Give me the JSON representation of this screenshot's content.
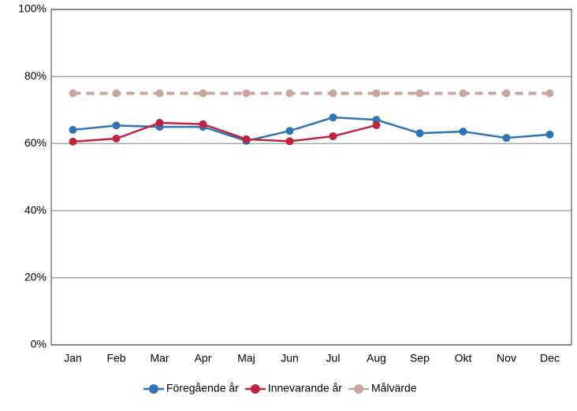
{
  "chart_data": {
    "type": "line",
    "categories": [
      "Jan",
      "Feb",
      "Mar",
      "Apr",
      "Maj",
      "Jun",
      "Jul",
      "Aug",
      "Sep",
      "Okt",
      "Nov",
      "Dec"
    ],
    "series": [
      {
        "name": "Föregående år",
        "color": "#2e75b6",
        "values": [
          64.1,
          65.4,
          65.0,
          65.0,
          60.8,
          63.8,
          67.8,
          67.1,
          63.1,
          63.6,
          61.7,
          62.7
        ]
      },
      {
        "name": "Innevarande år",
        "color": "#c0243c",
        "values": [
          60.6,
          61.5,
          66.2,
          65.8,
          61.3,
          60.7,
          62.2,
          65.5,
          null,
          null,
          null,
          null
        ]
      },
      {
        "name": "Målvärde",
        "color": "#c9a5a0",
        "dashed": true,
        "values": [
          75,
          75,
          75,
          75,
          75,
          75,
          75,
          75,
          75,
          75,
          75,
          75
        ]
      }
    ],
    "ylim": [
      0,
      100
    ],
    "yticks": [
      {
        "value": 0,
        "label": "0%"
      },
      {
        "value": 20,
        "label": "20%"
      },
      {
        "value": 40,
        "label": "40%"
      },
      {
        "value": 60,
        "label": "60%"
      },
      {
        "value": 80,
        "label": "80%"
      },
      {
        "value": 100,
        "label": "100%"
      }
    ],
    "grid": true,
    "legend": "bottom"
  }
}
